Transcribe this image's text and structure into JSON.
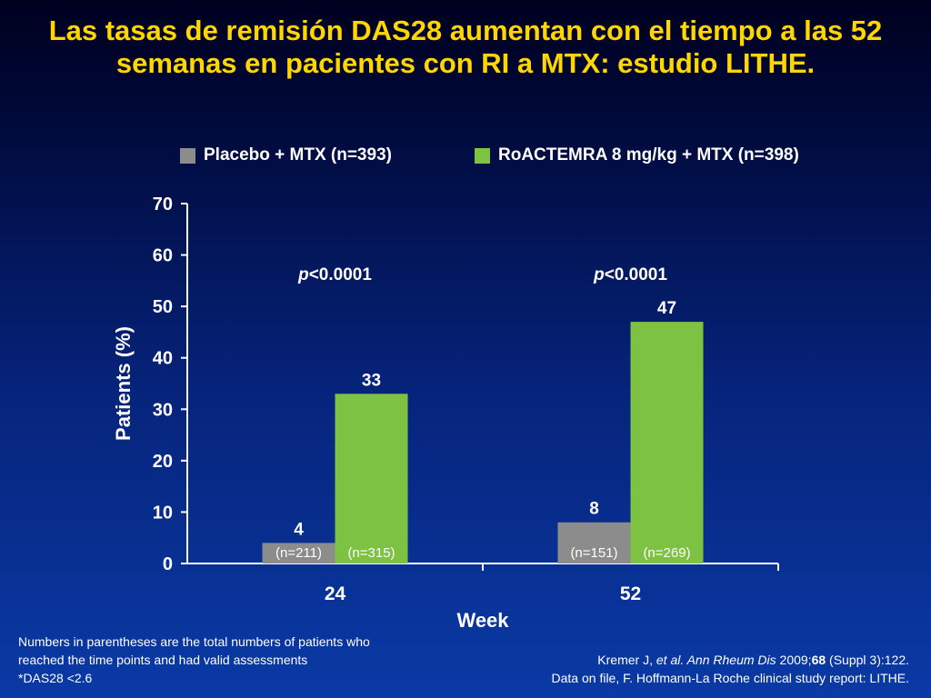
{
  "title": "Las tasas de remisión DAS28 aumentan con el tiempo a las 52 semanas en pacientes con RI a MTX: estudio LITHE.",
  "chart_data": {
    "type": "bar",
    "categories": [
      "24",
      "52"
    ],
    "xlabel": "Week",
    "ylabel": "Patients (%)",
    "ylim": [
      0,
      70
    ],
    "yticks": [
      0,
      10,
      20,
      30,
      40,
      50,
      60,
      70
    ],
    "grid": false,
    "legend_position": "top",
    "series": [
      {
        "name": "Placebo + MTX (n=393)",
        "values": [
          4,
          8
        ],
        "n_labels": [
          "(n=211)",
          "(n=151)"
        ],
        "color": "#8c8c8c"
      },
      {
        "name": "RoACTEMRA 8 mg/kg + MTX (n=398)",
        "values": [
          33,
          47
        ],
        "n_labels": [
          "(n=315)",
          "(n=269)"
        ],
        "color": "#7dc242"
      }
    ],
    "annotations": [
      {
        "category": "24",
        "p_italic": "p",
        "p_text": "<0.0001"
      },
      {
        "category": "52",
        "p_italic": "p",
        "p_text": "<0.0001"
      }
    ]
  },
  "footnote": {
    "line1": "Numbers in parentheses are the total numbers of patients who",
    "line2": "reached the time points and had valid assessments",
    "line3": "*DAS28 <2.6"
  },
  "citation": {
    "author": "Kremer J, ",
    "etal_journal": "et al. Ann Rheum Dis",
    "year": " 2009;",
    "volume": "68",
    "pages": " (Suppl 3):122.",
    "line2": "Data on file, F. Hoffmann-La Roche clinical study report: LITHE."
  },
  "colors": {
    "title": "#ffd600",
    "placebo": "#8c8c8c",
    "roactemra": "#7dc242",
    "text": "#ffffff"
  }
}
